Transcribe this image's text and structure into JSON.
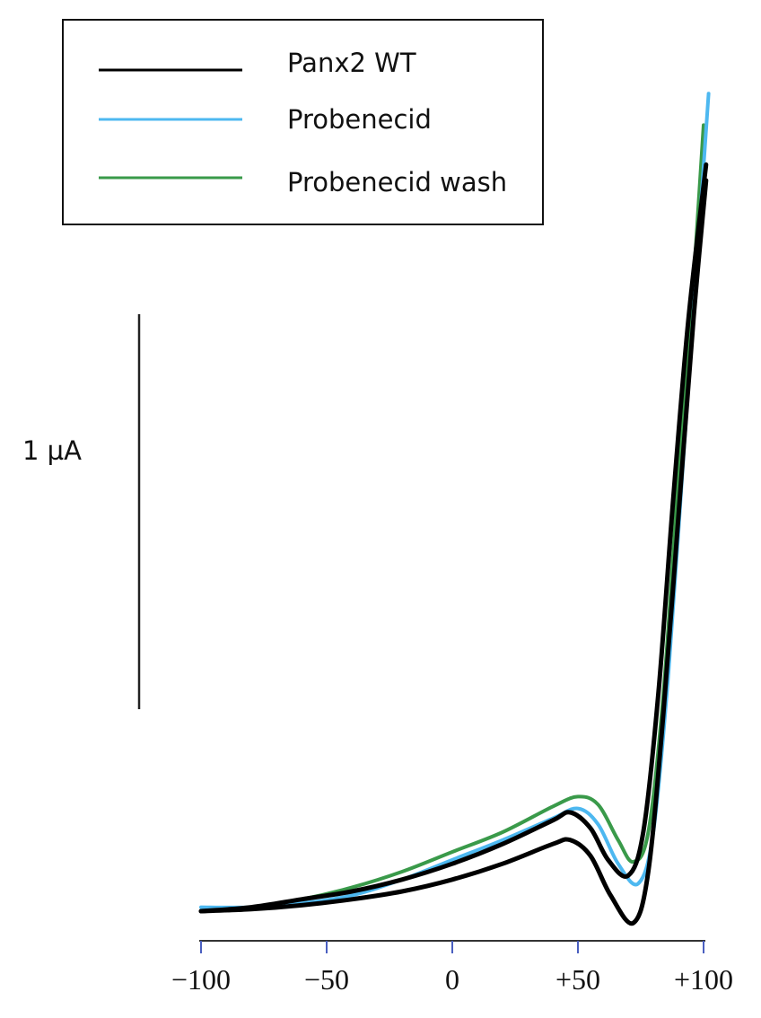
{
  "chart_data": {
    "type": "line",
    "title": "",
    "xlabel": "",
    "ylabel": "",
    "x_ticks": [
      -100,
      -50,
      0,
      50,
      100
    ],
    "x_tick_labels": [
      "−100",
      "−50",
      "0",
      "+50",
      "+100"
    ],
    "xlim": [
      -100,
      102
    ],
    "scale_bar": {
      "label": "1 µA",
      "value": 1
    },
    "legend": {
      "placement": "top-left",
      "entries": [
        {
          "name": "Panx2 WT",
          "color": "#000000"
        },
        {
          "name": "Probenecid",
          "color": "#4db8f0"
        },
        {
          "name": "Probenecid wash",
          "color": "#3a9a4a"
        }
      ]
    },
    "series": [
      {
        "legend_name": "Probenecid wash",
        "color": "#3a9a4a",
        "points": [
          [
            -100,
            0.0
          ],
          [
            -80,
            0.01
          ],
          [
            -60,
            0.03
          ],
          [
            -40,
            0.06
          ],
          [
            -20,
            0.1
          ],
          [
            0,
            0.15
          ],
          [
            20,
            0.2
          ],
          [
            40,
            0.265
          ],
          [
            50,
            0.29
          ],
          [
            58,
            0.27
          ],
          [
            66,
            0.18
          ],
          [
            72,
            0.125
          ],
          [
            78,
            0.2
          ],
          [
            84,
            0.55
          ],
          [
            90,
            1.1
          ],
          [
            96,
            1.6
          ],
          [
            100,
            1.99
          ]
        ]
      },
      {
        "legend_name": "Probenecid",
        "color": "#4db8f0",
        "points": [
          [
            -100,
            0.01
          ],
          [
            -80,
            0.01
          ],
          [
            -60,
            0.02
          ],
          [
            -40,
            0.04
          ],
          [
            -20,
            0.08
          ],
          [
            0,
            0.13
          ],
          [
            20,
            0.18
          ],
          [
            40,
            0.235
          ],
          [
            50,
            0.26
          ],
          [
            58,
            0.22
          ],
          [
            66,
            0.12
          ],
          [
            74,
            0.07
          ],
          [
            80,
            0.2
          ],
          [
            86,
            0.6
          ],
          [
            92,
            1.15
          ],
          [
            98,
            1.7
          ],
          [
            102,
            2.07
          ]
        ]
      },
      {
        "legend_name": "Panx2 WT",
        "color": "#000000",
        "points": [
          [
            -100,
            0
          ],
          [
            -80,
            0.01
          ],
          [
            -60,
            0.03
          ],
          [
            -40,
            0.05
          ],
          [
            -20,
            0.08
          ],
          [
            0,
            0.12
          ],
          [
            20,
            0.17
          ],
          [
            40,
            0.23
          ],
          [
            47,
            0.25
          ],
          [
            55,
            0.21
          ],
          [
            62,
            0.13
          ],
          [
            70,
            0.09
          ],
          [
            76,
            0.2
          ],
          [
            82,
            0.55
          ],
          [
            88,
            1.05
          ],
          [
            94,
            1.5
          ],
          [
            101,
            1.89
          ]
        ]
      },
      {
        "legend_name": "Panx2 WT",
        "color": "#000000",
        "points": [
          [
            -100,
            0
          ],
          [
            -80,
            0.005
          ],
          [
            -60,
            0.015
          ],
          [
            -40,
            0.03
          ],
          [
            -20,
            0.05
          ],
          [
            0,
            0.08
          ],
          [
            20,
            0.12
          ],
          [
            40,
            0.17
          ],
          [
            47,
            0.18
          ],
          [
            55,
            0.14
          ],
          [
            63,
            0.04
          ],
          [
            72,
            -0.03
          ],
          [
            78,
            0.1
          ],
          [
            84,
            0.5
          ],
          [
            90,
            1.0
          ],
          [
            96,
            1.5
          ],
          [
            101,
            1.85
          ]
        ]
      }
    ],
    "colors": {
      "axis": "#333333",
      "ticks": "#4a5fc0"
    }
  }
}
